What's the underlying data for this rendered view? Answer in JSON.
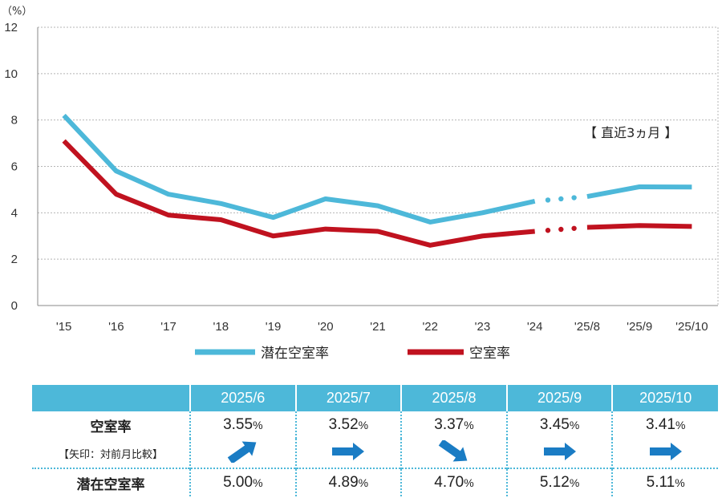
{
  "chart_data": {
    "type": "line",
    "unit_label": "（%）",
    "categories": [
      "'15",
      "'16",
      "'17",
      "'18",
      "'19",
      "'20",
      "'21",
      "'22",
      "'23",
      "'24",
      "'25/8",
      "'25/9",
      "'25/10"
    ],
    "ylim": [
      0,
      12
    ],
    "yticks": [
      "0",
      "2",
      "4",
      "6",
      "8",
      "10",
      "12"
    ],
    "annotation": "【 直近3ヵ月 】",
    "grid": true,
    "legend_position": "bottom",
    "series": [
      {
        "name": "潜在空室率",
        "color": "#4db8d9",
        "values": [
          8.2,
          5.8,
          4.8,
          4.4,
          3.8,
          4.6,
          4.3,
          3.6,
          4.0,
          4.5,
          4.7,
          5.12,
          5.11
        ]
      },
      {
        "name": "空室率",
        "color": "#c0121f",
        "values": [
          7.1,
          4.8,
          3.9,
          3.7,
          3.0,
          3.3,
          3.2,
          2.6,
          3.0,
          3.2,
          3.37,
          3.45,
          3.41
        ]
      }
    ]
  },
  "table": {
    "months": [
      "2025/6",
      "2025/7",
      "2025/8",
      "2025/9",
      "2025/10"
    ],
    "vacancy_label": "空室率",
    "arrow_note": "【矢印：対前月比較】",
    "potential_label": "潜在空室率",
    "pct": "%",
    "vacancy": [
      "3.55",
      "3.52",
      "3.37",
      "3.45",
      "3.41"
    ],
    "arrows": [
      "up",
      "flat",
      "down",
      "flat",
      "flat"
    ],
    "potential": [
      "5.00",
      "4.89",
      "4.70",
      "5.12",
      "5.11"
    ],
    "arrow_color": "#1a7cc4"
  }
}
